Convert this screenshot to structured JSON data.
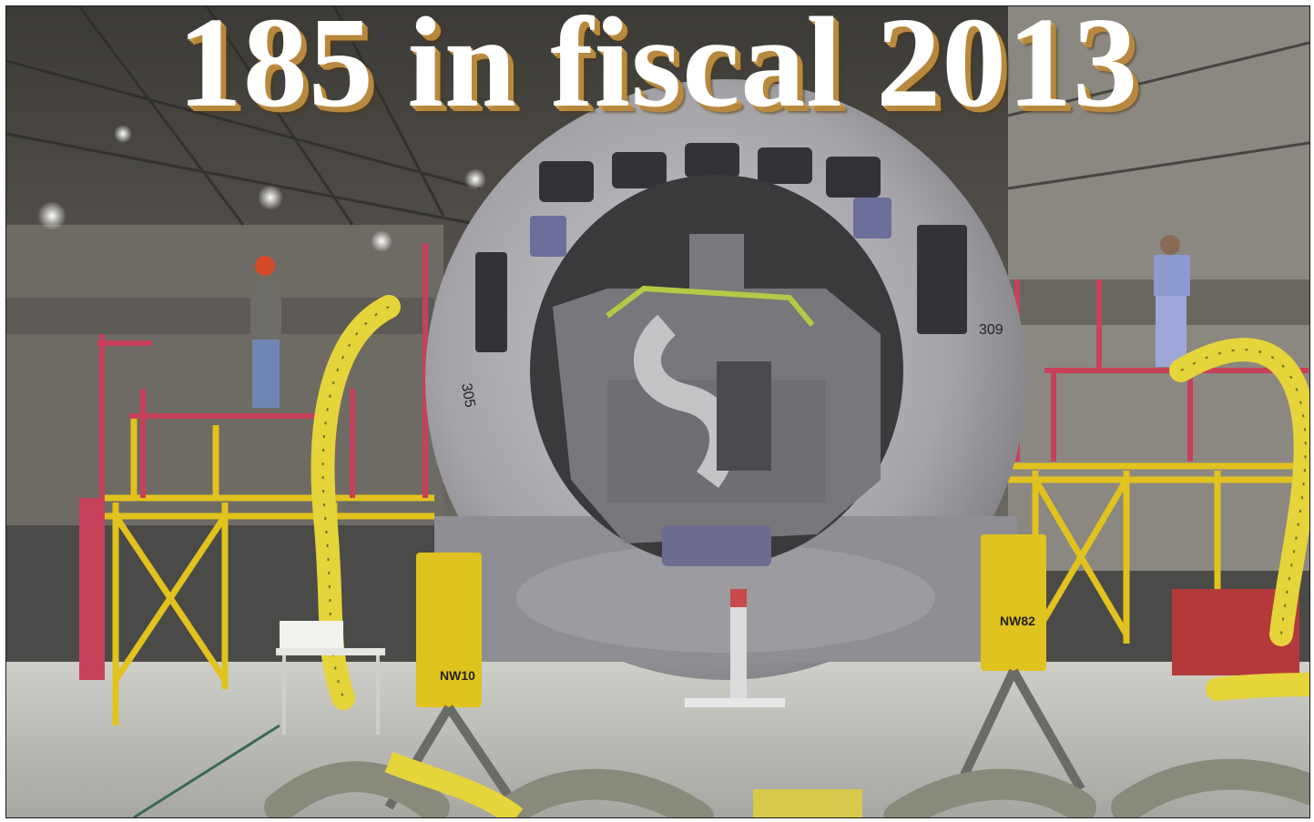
{
  "headline": {
    "text": "185 in fiscal 2013",
    "shadow_color": "#c99a48",
    "text_color": "#ffffff"
  },
  "photo": {
    "subject": "aircraft-nose-in-hangar",
    "nose_markings": [
      "305",
      "309"
    ],
    "jack_labels": [
      "NW10",
      "NW82"
    ],
    "colors": {
      "fuselage": "#a9a8ab",
      "stairs": "#c7415a",
      "scaffold": "#e2c21c",
      "hose": "#e5d43a",
      "floor": "#bdbdb8"
    }
  }
}
